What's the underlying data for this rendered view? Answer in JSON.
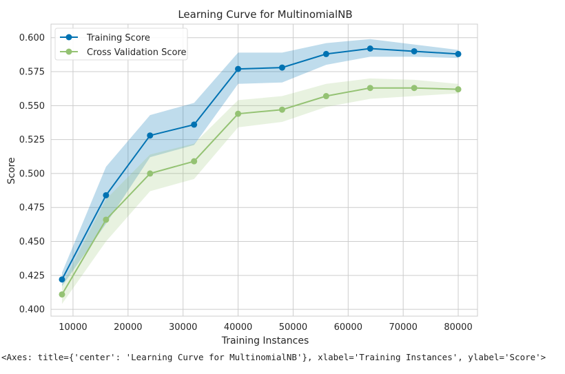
{
  "chart_data": {
    "type": "line",
    "title": "Learning Curve for MultinomialNB",
    "xlabel": "Training Instances",
    "ylabel": "Score",
    "xlim": [
      6000,
      83500
    ],
    "ylim": [
      0.395,
      0.61
    ],
    "xticks": [
      10000,
      20000,
      30000,
      40000,
      50000,
      60000,
      70000,
      80000
    ],
    "yticks": [
      0.4,
      0.425,
      0.45,
      0.475,
      0.5,
      0.525,
      0.55,
      0.575,
      0.6
    ],
    "ytick_labels": [
      "0.400",
      "0.425",
      "0.450",
      "0.475",
      "0.500",
      "0.525",
      "0.550",
      "0.575",
      "0.600"
    ],
    "grid": true,
    "legend_position": "top-left",
    "x": [
      8000,
      16000,
      24000,
      32000,
      40000,
      48000,
      56000,
      64000,
      72000,
      80000
    ],
    "series": [
      {
        "name": "Training Score",
        "color": "#0072b2",
        "band_color": "#0072b2",
        "values": [
          0.422,
          0.484,
          0.528,
          0.536,
          0.577,
          0.578,
          0.588,
          0.592,
          0.59,
          0.588
        ],
        "band_lower": [
          0.417,
          0.463,
          0.512,
          0.521,
          0.566,
          0.567,
          0.58,
          0.586,
          0.586,
          0.585
        ],
        "band_upper": [
          0.427,
          0.505,
          0.543,
          0.552,
          0.589,
          0.589,
          0.596,
          0.599,
          0.595,
          0.591
        ]
      },
      {
        "name": "Cross Validation Score",
        "color": "#94c273",
        "band_color": "#94c273",
        "values": [
          0.411,
          0.466,
          0.5,
          0.509,
          0.544,
          0.547,
          0.557,
          0.563,
          0.563,
          0.562
        ],
        "band_lower": [
          0.404,
          0.45,
          0.487,
          0.496,
          0.534,
          0.538,
          0.549,
          0.555,
          0.557,
          0.559
        ],
        "band_upper": [
          0.418,
          0.481,
          0.514,
          0.522,
          0.554,
          0.557,
          0.566,
          0.57,
          0.569,
          0.566
        ]
      }
    ]
  },
  "repr_text": "<Axes: title={'center': 'Learning Curve for MultinomialNB'}, xlabel='Training Instances', ylabel='Score'>"
}
